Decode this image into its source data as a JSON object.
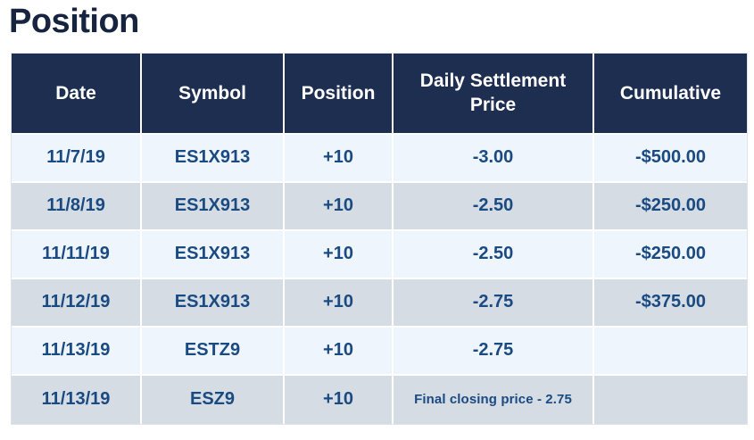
{
  "page_title": "Position",
  "colors": {
    "header_bg": "#1e2e50",
    "header_text": "#ffffff",
    "row_odd_bg": "#eff5fc",
    "row_even_bg": "#d5dce4",
    "cell_text": "#1a4a82",
    "title_text": "#16243f"
  },
  "table": {
    "columns": [
      {
        "id": "date",
        "label": "Date"
      },
      {
        "id": "symbol",
        "label": "Symbol"
      },
      {
        "id": "position",
        "label": "Position"
      },
      {
        "id": "price",
        "label": "Daily Settlement Price"
      },
      {
        "id": "cumulative",
        "label": "Cumulative"
      }
    ],
    "rows": [
      {
        "date": "11/7/19",
        "symbol": "ES1X913",
        "position": "+10",
        "price": "-3.00",
        "cumulative": "-$500.00",
        "price_note": false
      },
      {
        "date": "11/8/19",
        "symbol": "ES1X913",
        "position": "+10",
        "price": "-2.50",
        "cumulative": "-$250.00",
        "price_note": false
      },
      {
        "date": "11/11/19",
        "symbol": "ES1X913",
        "position": "+10",
        "price": "-2.50",
        "cumulative": "-$250.00",
        "price_note": false
      },
      {
        "date": "11/12/19",
        "symbol": "ES1X913",
        "position": "+10",
        "price": "-2.75",
        "cumulative": "-$375.00",
        "price_note": false
      },
      {
        "date": "11/13/19",
        "symbol": "ESTZ9",
        "position": "+10",
        "price": "-2.75",
        "cumulative": "",
        "price_note": false
      },
      {
        "date": "11/13/19",
        "symbol": "ESZ9",
        "position": "+10",
        "price": "Final closing price - 2.75",
        "cumulative": "",
        "price_note": true
      }
    ]
  },
  "chart_data": {
    "type": "table",
    "title": "Position",
    "columns": [
      "Date",
      "Symbol",
      "Position",
      "Daily Settlement Price",
      "Cumulative"
    ],
    "rows": [
      [
        "11/7/19",
        "ES1X913",
        "+10",
        "-3.00",
        "-$500.00"
      ],
      [
        "11/8/19",
        "ES1X913",
        "+10",
        "-2.50",
        "-$250.00"
      ],
      [
        "11/11/19",
        "ES1X913",
        "+10",
        "-2.50",
        "-$250.00"
      ],
      [
        "11/12/19",
        "ES1X913",
        "+10",
        "-2.75",
        "-$375.00"
      ],
      [
        "11/13/19",
        "ESTZ9",
        "+10",
        "-2.75",
        ""
      ],
      [
        "11/13/19",
        "ESZ9",
        "+10",
        "Final closing price - 2.75",
        ""
      ]
    ],
    "layout": {
      "header_style": "dark-navy",
      "row_striping": "alternating light-blue / gray-blue",
      "text_align": "center"
    }
  }
}
